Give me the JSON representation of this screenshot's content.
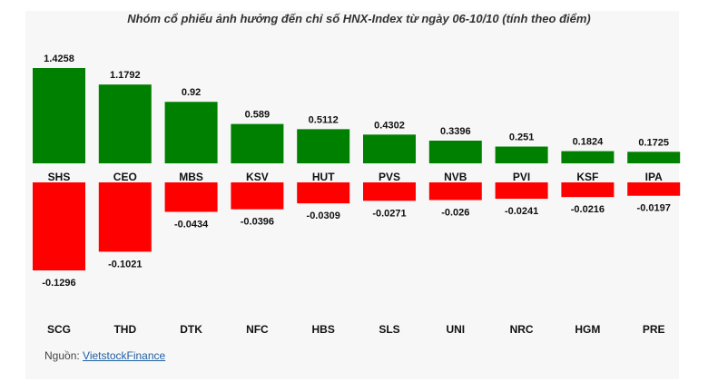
{
  "title": "Nhóm cổ phiếu ảnh hưởng đến chỉ số HNX-Index từ ngày 06-10/10 (tính theo điểm)",
  "source": {
    "prefix": "Nguồn: ",
    "link_text": "VietstockFinance"
  },
  "colors": {
    "positive": "#008000",
    "negative": "#ff0000",
    "background": "#f7f7f7"
  },
  "chart_data": {
    "type": "bar",
    "title": "Nhóm cổ phiếu ảnh hưởng đến chỉ số HNX-Index từ ngày 06-10/10 (tính theo điểm)",
    "grid": false,
    "legend": "none",
    "positive": {
      "categories": [
        "SHS",
        "CEO",
        "MBS",
        "KSV",
        "HUT",
        "PVS",
        "NVB",
        "PVI",
        "KSF",
        "IPA"
      ],
      "values": [
        1.4258,
        1.1792,
        0.92,
        0.589,
        0.5112,
        0.4302,
        0.3396,
        0.251,
        0.1824,
        0.1725
      ],
      "labels": [
        "1.4258",
        "1.1792",
        "0.92",
        "0.589",
        "0.5112",
        "0.4302",
        "0.3396",
        "0.251",
        "0.1824",
        "0.1725"
      ]
    },
    "negative": {
      "categories": [
        "SCG",
        "THD",
        "DTK",
        "NFC",
        "HBS",
        "SLS",
        "UNI",
        "NRC",
        "HGM",
        "PRE"
      ],
      "values": [
        -0.1296,
        -0.1021,
        -0.0434,
        -0.0396,
        -0.0309,
        -0.0271,
        -0.026,
        -0.0241,
        -0.0216,
        -0.0197
      ],
      "labels": [
        "-0.1296",
        "-0.1021",
        "-0.0434",
        "-0.0396",
        "-0.0309",
        "-0.0271",
        "-0.026",
        "-0.0241",
        "-0.0216",
        "-0.0197"
      ]
    }
  }
}
